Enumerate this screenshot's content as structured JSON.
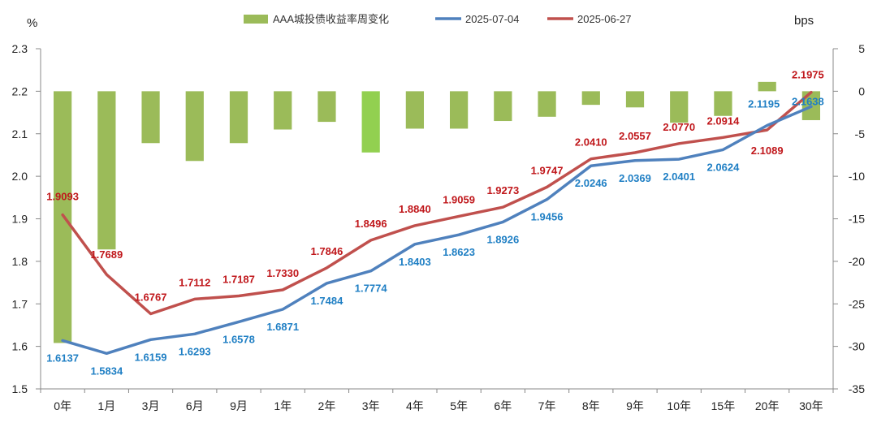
{
  "chart_data": {
    "type": "bar+line",
    "title": "",
    "left_axis": {
      "unit": "%",
      "ylim": [
        1.5,
        2.3
      ],
      "ticks": [
        "1.5",
        "1.6",
        "1.7",
        "1.8",
        "1.9",
        "2.0",
        "2.1",
        "2.2",
        "2.3"
      ]
    },
    "right_axis": {
      "unit": "bps",
      "ylim": [
        -35,
        5
      ],
      "ticks": [
        "-35",
        "-30",
        "-25",
        "-20",
        "-15",
        "-10",
        "-5",
        "0",
        "5"
      ]
    },
    "categories": [
      "0年",
      "1月",
      "3月",
      "6月",
      "9月",
      "1年",
      "2年",
      "3年",
      "4年",
      "5年",
      "6年",
      "7年",
      "8年",
      "9年",
      "10年",
      "15年",
      "20年",
      "30年"
    ],
    "bar_series": {
      "name": "AAA城投债收益率周变化",
      "axis": "right",
      "color": "#9bbb59",
      "highlight_color": "#92d050",
      "highlight_index": 7,
      "values": [
        -29.6,
        -18.6,
        -6.1,
        -8.2,
        -6.1,
        -4.5,
        -3.6,
        -7.2,
        -4.4,
        -4.4,
        -3.5,
        -3.0,
        -1.6,
        -1.9,
        -3.7,
        -2.9,
        1.1,
        -3.4
      ]
    },
    "series": [
      {
        "name": "2025-07-04",
        "axis": "left",
        "color": "#4f81bd",
        "label_color": "#1f7fc4",
        "values": [
          1.6137,
          1.5834,
          1.6159,
          1.6293,
          1.6578,
          1.6871,
          1.7484,
          1.7774,
          1.8403,
          1.8623,
          1.8926,
          1.9456,
          2.0246,
          2.0369,
          2.0401,
          2.0624,
          2.1195,
          2.1638
        ],
        "labels": [
          "1.6137",
          "1.5834",
          "1.6159",
          "1.6293",
          "1.6578",
          "1.6871",
          "1.7484",
          "1.7774",
          "1.8403",
          "1.8623",
          "1.8926",
          "1.9456",
          "2.0246",
          "2.0369",
          "2.0401",
          "2.0624",
          "2.1195",
          "2.1638"
        ]
      },
      {
        "name": "2025-06-27",
        "axis": "left",
        "color": "#c0504d",
        "label_color": "#c0171b",
        "values": [
          1.9093,
          1.7689,
          1.6767,
          1.7112,
          1.7187,
          1.733,
          1.7846,
          1.8496,
          1.884,
          1.9059,
          1.9273,
          1.9747,
          2.041,
          2.0557,
          2.077,
          2.0914,
          2.1089,
          2.1975
        ],
        "labels": [
          "1.9093",
          "1.7689",
          "1.6767",
          "1.7112",
          "1.7187",
          "1.7330",
          "1.7846",
          "1.8496",
          "1.8840",
          "1.9059",
          "1.9273",
          "1.9747",
          "2.0410",
          "2.0557",
          "2.0770",
          "2.0914",
          "2.1089",
          "2.1975"
        ]
      }
    ],
    "legend": {
      "position": "top",
      "items": [
        "AAA城投债收益率周变化",
        "2025-07-04",
        "2025-06-27"
      ]
    }
  }
}
